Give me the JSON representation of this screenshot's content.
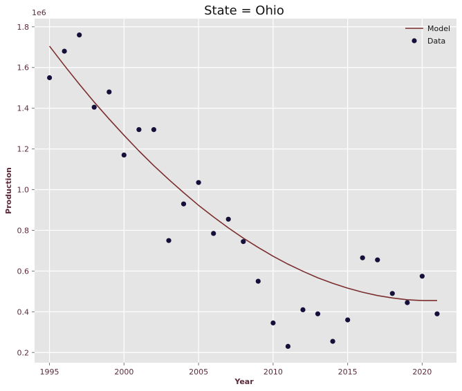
{
  "chart_data": {
    "type": "scatter",
    "title": "State = Ohio",
    "xlabel": "Year",
    "ylabel": "Production",
    "y_offset_label": "1e6",
    "xlim": [
      1994.0,
      2022.3
    ],
    "ylim": [
      0.15,
      1.84
    ],
    "xticks": [
      1995,
      2000,
      2005,
      2010,
      2015,
      2020
    ],
    "yticks": [
      0.2,
      0.4,
      0.6,
      0.8,
      1.0,
      1.2,
      1.4,
      1.6,
      1.8
    ],
    "ytick_labels": [
      "0.2",
      "0.4",
      "0.6",
      "0.8",
      "1.0",
      "1.2",
      "1.4",
      "1.6",
      "1.8"
    ],
    "grid": true,
    "legend_position": "top-right",
    "series": [
      {
        "name": "Model",
        "kind": "line",
        "color": "#7b2d2d",
        "x": [
          1995,
          1996,
          1997,
          1998,
          1999,
          2000,
          2001,
          2002,
          2003,
          2004,
          2005,
          2006,
          2007,
          2008,
          2009,
          2010,
          2011,
          2012,
          2013,
          2014,
          2015,
          2016,
          2017,
          2018,
          2019,
          2020,
          2021
        ],
        "y": [
          1.705,
          1.61,
          1.518,
          1.43,
          1.347,
          1.267,
          1.19,
          1.118,
          1.05,
          0.985,
          0.923,
          0.866,
          0.812,
          0.762,
          0.716,
          0.673,
          0.634,
          0.599,
          0.567,
          0.54,
          0.516,
          0.496,
          0.48,
          0.468,
          0.459,
          0.455,
          0.455
        ]
      },
      {
        "name": "Data",
        "kind": "scatter",
        "color": "#14103a",
        "x": [
          1995,
          1996,
          1997,
          1998,
          1999,
          2000,
          2001,
          2002,
          2003,
          2004,
          2005,
          2006,
          2007,
          2008,
          2009,
          2010,
          2011,
          2012,
          2013,
          2014,
          2015,
          2016,
          2017,
          2018,
          2019,
          2020,
          2021
        ],
        "y": [
          1.55,
          1.68,
          1.76,
          1.405,
          1.48,
          1.17,
          1.295,
          1.295,
          0.75,
          0.93,
          1.035,
          0.785,
          0.855,
          0.745,
          0.55,
          0.345,
          0.23,
          0.41,
          0.39,
          0.255,
          0.36,
          0.665,
          0.655,
          0.49,
          0.445,
          0.575,
          0.39
        ]
      }
    ]
  }
}
